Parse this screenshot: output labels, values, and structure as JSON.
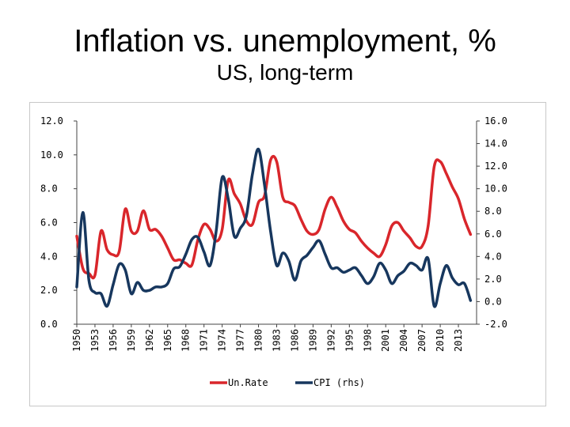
{
  "page": {
    "title": "Inflation vs. unemployment, %",
    "subtitle": "US, long-term"
  },
  "chart_data": {
    "type": "line",
    "title": "Inflation vs. unemployment, %",
    "subtitle": "US, long-term",
    "x_ticks": [
      "1950",
      "1953",
      "1956",
      "1959",
      "1962",
      "1965",
      "1968",
      "1971",
      "1974",
      "1977",
      "1980",
      "1983",
      "1986",
      "1989",
      "1992",
      "1995",
      "1998",
      "2001",
      "2004",
      "2007",
      "2010",
      "2013"
    ],
    "xlim": [
      1950,
      2016
    ],
    "left_axis": {
      "ylim": [
        0,
        12
      ],
      "ticks": [
        "0.0",
        "2.0",
        "4.0",
        "6.0",
        "8.0",
        "10.0",
        "12.0"
      ]
    },
    "right_axis": {
      "ylim": [
        -2,
        16
      ],
      "ticks": [
        "-2.0",
        "0.0",
        "2.0",
        "4.0",
        "6.0",
        "8.0",
        "10.0",
        "12.0",
        "14.0",
        "16.0"
      ]
    },
    "legend": {
      "position": "bottom"
    },
    "colors": {
      "unrate": "#d9262b",
      "cpi": "#17375e"
    },
    "series": [
      {
        "name": "Un.Rate",
        "axis": "left",
        "points": [
          [
            1950,
            5.2
          ],
          [
            1951,
            3.3
          ],
          [
            1952,
            3.0
          ],
          [
            1953,
            2.9
          ],
          [
            1954,
            5.5
          ],
          [
            1955,
            4.4
          ],
          [
            1956,
            4.1
          ],
          [
            1957,
            4.3
          ],
          [
            1958,
            6.8
          ],
          [
            1959,
            5.5
          ],
          [
            1960,
            5.5
          ],
          [
            1961,
            6.7
          ],
          [
            1962,
            5.6
          ],
          [
            1963,
            5.6
          ],
          [
            1964,
            5.2
          ],
          [
            1965,
            4.5
          ],
          [
            1966,
            3.8
          ],
          [
            1967,
            3.8
          ],
          [
            1968,
            3.6
          ],
          [
            1969,
            3.5
          ],
          [
            1970,
            5.0
          ],
          [
            1971,
            5.9
          ],
          [
            1972,
            5.6
          ],
          [
            1973,
            4.9
          ],
          [
            1974,
            5.6
          ],
          [
            1975,
            8.5
          ],
          [
            1976,
            7.7
          ],
          [
            1977,
            7.1
          ],
          [
            1978,
            6.1
          ],
          [
            1979,
            5.9
          ],
          [
            1980,
            7.2
          ],
          [
            1981,
            7.6
          ],
          [
            1982,
            9.7
          ],
          [
            1983,
            9.6
          ],
          [
            1984,
            7.5
          ],
          [
            1985,
            7.2
          ],
          [
            1986,
            7.0
          ],
          [
            1987,
            6.2
          ],
          [
            1988,
            5.5
          ],
          [
            1989,
            5.3
          ],
          [
            1990,
            5.6
          ],
          [
            1991,
            6.8
          ],
          [
            1992,
            7.5
          ],
          [
            1993,
            6.9
          ],
          [
            1994,
            6.1
          ],
          [
            1995,
            5.6
          ],
          [
            1996,
            5.4
          ],
          [
            1997,
            4.9
          ],
          [
            1998,
            4.5
          ],
          [
            1999,
            4.2
          ],
          [
            2000,
            4.0
          ],
          [
            2001,
            4.7
          ],
          [
            2002,
            5.8
          ],
          [
            2003,
            6.0
          ],
          [
            2004,
            5.5
          ],
          [
            2005,
            5.1
          ],
          [
            2006,
            4.6
          ],
          [
            2007,
            4.6
          ],
          [
            2008,
            5.8
          ],
          [
            2009,
            9.3
          ],
          [
            2010,
            9.6
          ],
          [
            2011,
            8.9
          ],
          [
            2012,
            8.1
          ],
          [
            2013,
            7.4
          ],
          [
            2014,
            6.2
          ],
          [
            2015,
            5.3
          ]
        ]
      },
      {
        "name": "CPI (rhs)",
        "axis": "right",
        "points": [
          [
            1950,
            1.3
          ],
          [
            1951,
            7.9
          ],
          [
            1952,
            1.9
          ],
          [
            1953,
            0.8
          ],
          [
            1954,
            0.7
          ],
          [
            1955,
            -0.4
          ],
          [
            1956,
            1.5
          ],
          [
            1957,
            3.3
          ],
          [
            1958,
            2.8
          ],
          [
            1959,
            0.7
          ],
          [
            1960,
            1.7
          ],
          [
            1961,
            1.0
          ],
          [
            1962,
            1.0
          ],
          [
            1963,
            1.3
          ],
          [
            1964,
            1.3
          ],
          [
            1965,
            1.6
          ],
          [
            1966,
            2.9
          ],
          [
            1967,
            3.1
          ],
          [
            1968,
            4.2
          ],
          [
            1969,
            5.5
          ],
          [
            1970,
            5.7
          ],
          [
            1971,
            4.4
          ],
          [
            1972,
            3.2
          ],
          [
            1973,
            6.2
          ],
          [
            1974,
            11.0
          ],
          [
            1975,
            9.1
          ],
          [
            1976,
            5.8
          ],
          [
            1977,
            6.5
          ],
          [
            1978,
            7.6
          ],
          [
            1979,
            11.3
          ],
          [
            1980,
            13.5
          ],
          [
            1981,
            10.3
          ],
          [
            1982,
            6.2
          ],
          [
            1983,
            3.2
          ],
          [
            1984,
            4.3
          ],
          [
            1985,
            3.6
          ],
          [
            1986,
            1.9
          ],
          [
            1987,
            3.6
          ],
          [
            1988,
            4.1
          ],
          [
            1989,
            4.8
          ],
          [
            1990,
            5.4
          ],
          [
            1991,
            4.2
          ],
          [
            1992,
            3.0
          ],
          [
            1993,
            3.0
          ],
          [
            1994,
            2.6
          ],
          [
            1995,
            2.8
          ],
          [
            1996,
            3.0
          ],
          [
            1997,
            2.3
          ],
          [
            1998,
            1.6
          ],
          [
            1999,
            2.2
          ],
          [
            2000,
            3.4
          ],
          [
            2001,
            2.8
          ],
          [
            2002,
            1.6
          ],
          [
            2003,
            2.3
          ],
          [
            2004,
            2.7
          ],
          [
            2005,
            3.4
          ],
          [
            2006,
            3.2
          ],
          [
            2007,
            2.8
          ],
          [
            2008,
            3.8
          ],
          [
            2009,
            -0.4
          ],
          [
            2010,
            1.6
          ],
          [
            2011,
            3.2
          ],
          [
            2012,
            2.1
          ],
          [
            2013,
            1.5
          ],
          [
            2014,
            1.6
          ],
          [
            2015,
            0.1
          ]
        ]
      }
    ]
  }
}
